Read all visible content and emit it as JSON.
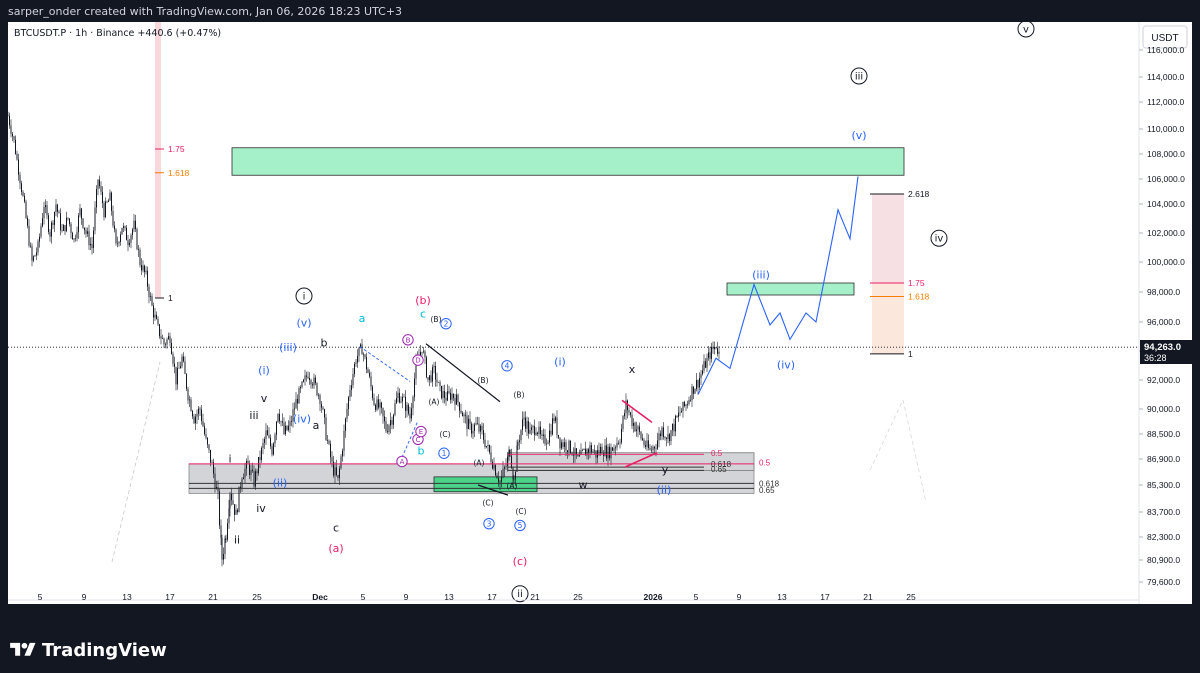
{
  "header": {
    "created_by": "sarper_onder created with TradingView.com, Jan 06, 2026 18:23 UTC+3",
    "symbol_line": "BTCUSDT.P · 1h · Binance  +440.6 (+0.47%)"
  },
  "brand": {
    "name": "TradingView"
  },
  "price_scale": {
    "currency": "USDT",
    "current_price": "94,263.0",
    "countdown": "36:28"
  },
  "colors": {
    "up": "#26a69a",
    "down": "#ef5350",
    "candle": "#131722",
    "blue_wave": "#2962ff",
    "target_zone": "#a5f0c8",
    "pink": "#e91e63",
    "orange": "#f57c00",
    "purple": "#9c27b0",
    "cyan": "#00bcd4"
  },
  "chart_data": {
    "type": "candlestick",
    "interval": "1h",
    "y_ticks": [
      79600,
      80900,
      82300,
      83700,
      85300,
      86900,
      88500,
      90000,
      92000,
      94000,
      96000,
      98000,
      100000,
      102000,
      104000,
      106000,
      108000,
      110000,
      112000,
      114000,
      116000
    ],
    "y_tick_labels": [
      "79,600.0",
      "80,900.0",
      "82,300.0",
      "83,700.0",
      "85,300.0",
      "86,900.0",
      "88,500.0",
      "90,000.0",
      "92,000.0",
      "94,000.0",
      "96,000.0",
      "98,000.0",
      "100,000.0",
      "102,000.0",
      "104,000.0",
      "106,000.0",
      "108,000.0",
      "110,000.0",
      "112,000.0",
      "114,000.0",
      "116,000.0"
    ],
    "x_ticks": [
      "5",
      "9",
      "13",
      "17",
      "21",
      "25",
      "Dec",
      "5",
      "9",
      "13",
      "17",
      "21",
      "25",
      "2026",
      "5",
      "9",
      "13",
      "17",
      "21",
      "25"
    ],
    "price_path": [
      [
        0,
        111000
      ],
      [
        6,
        109000
      ],
      [
        12,
        106000
      ],
      [
        18,
        103000
      ],
      [
        24,
        100000
      ],
      [
        30,
        101000
      ],
      [
        36,
        104000
      ],
      [
        42,
        102000
      ],
      [
        48,
        104000
      ],
      [
        54,
        102000
      ],
      [
        60,
        103000
      ],
      [
        66,
        101500
      ],
      [
        72,
        103500
      ],
      [
        78,
        102000
      ],
      [
        84,
        101000
      ],
      [
        90,
        106000
      ],
      [
        96,
        103500
      ],
      [
        102,
        104500
      ],
      [
        108,
        101000
      ],
      [
        114,
        102500
      ],
      [
        120,
        101500
      ],
      [
        126,
        102500
      ],
      [
        132,
        100000
      ],
      [
        138,
        99000
      ],
      [
        144,
        97000
      ],
      [
        150,
        95500
      ],
      [
        156,
        94500
      ],
      [
        162,
        95000
      ],
      [
        168,
        92000
      ],
      [
        174,
        93500
      ],
      [
        180,
        91000
      ],
      [
        186,
        89500
      ],
      [
        192,
        90000
      ],
      [
        198,
        88000
      ],
      [
        204,
        86500
      ],
      [
        210,
        84500
      ],
      [
        214,
        81000
      ],
      [
        218,
        82500
      ],
      [
        222,
        85000
      ],
      [
        228,
        83500
      ],
      [
        234,
        86000
      ],
      [
        240,
        86500
      ],
      [
        246,
        85500
      ],
      [
        252,
        87000
      ],
      [
        258,
        88500
      ],
      [
        264,
        87500
      ],
      [
        270,
        90000
      ],
      [
        276,
        88500
      ],
      [
        282,
        89000
      ],
      [
        288,
        90500
      ],
      [
        294,
        91500
      ],
      [
        300,
        92500
      ],
      [
        306,
        91800
      ],
      [
        312,
        90800
      ],
      [
        318,
        88500
      ],
      [
        324,
        86500
      ],
      [
        330,
        85500
      ],
      [
        336,
        88500
      ],
      [
        342,
        91500
      ],
      [
        348,
        93500
      ],
      [
        354,
        94200
      ],
      [
        360,
        92500
      ],
      [
        366,
        90500
      ],
      [
        372,
        90000
      ],
      [
        378,
        88800
      ],
      [
        384,
        89500
      ],
      [
        390,
        91000
      ],
      [
        396,
        90500
      ],
      [
        402,
        89500
      ],
      [
        408,
        93000
      ],
      [
        414,
        94300
      ],
      [
        420,
        92000
      ],
      [
        426,
        92600
      ],
      [
        432,
        91200
      ],
      [
        438,
        90800
      ],
      [
        444,
        91000
      ],
      [
        450,
        90500
      ],
      [
        456,
        89500
      ],
      [
        462,
        88800
      ],
      [
        468,
        89000
      ],
      [
        474,
        88500
      ],
      [
        480,
        87500
      ],
      [
        486,
        86500
      ],
      [
        492,
        85500
      ],
      [
        498,
        86500
      ],
      [
        502,
        87500
      ],
      [
        506,
        85500
      ],
      [
        510,
        88000
      ],
      [
        516,
        89500
      ],
      [
        522,
        88500
      ],
      [
        528,
        89000
      ],
      [
        534,
        88000
      ],
      [
        540,
        88300
      ],
      [
        546,
        89500
      ],
      [
        552,
        88000
      ],
      [
        558,
        87800
      ],
      [
        564,
        87500
      ],
      [
        570,
        86800
      ],
      [
        576,
        87300
      ],
      [
        582,
        87600
      ],
      [
        588,
        87200
      ],
      [
        594,
        87600
      ],
      [
        600,
        87300
      ],
      [
        606,
        87700
      ],
      [
        612,
        88300
      ],
      [
        618,
        90300
      ],
      [
        624,
        89300
      ],
      [
        630,
        88700
      ],
      [
        636,
        87900
      ],
      [
        642,
        87400
      ],
      [
        648,
        87900
      ],
      [
        654,
        88800
      ],
      [
        660,
        88300
      ],
      [
        666,
        89000
      ],
      [
        672,
        89800
      ],
      [
        678,
        90300
      ],
      [
        684,
        91300
      ],
      [
        690,
        91900
      ],
      [
        696,
        92900
      ],
      [
        702,
        93800
      ],
      [
        708,
        94400
      ],
      [
        712,
        93600
      ]
    ],
    "projection_path": [
      [
        690,
        91000
      ],
      [
        708,
        93500
      ],
      [
        722,
        92800
      ],
      [
        746,
        98500
      ],
      [
        762,
        95800
      ],
      [
        772,
        96600
      ],
      [
        782,
        94800
      ],
      [
        798,
        96600
      ],
      [
        808,
        96000
      ],
      [
        830,
        103600
      ],
      [
        842,
        101600
      ],
      [
        850,
        106200
      ]
    ],
    "zones": [
      {
        "name": "target-zone-v",
        "from": 106300,
        "to": 108500
      },
      {
        "name": "target-zone-iii",
        "from": 97800,
        "to": 98600
      },
      {
        "name": "support-zone",
        "from": 84800,
        "to": 85800
      }
    ],
    "fib_right": [
      {
        "label": "2.618",
        "value": 104800
      },
      {
        "label": "1.75",
        "value": 98600
      },
      {
        "label": "1.618",
        "value": 97700
      },
      {
        "label": "1",
        "value": 93800
      }
    ],
    "fib_left": [
      {
        "label": "1.75",
        "value": 108400
      },
      {
        "label": "1.618",
        "value": 106500
      },
      {
        "label": "1",
        "value": 97600
      }
    ],
    "fib_mid": [
      {
        "label": "0.5",
        "value": 87200
      },
      {
        "label": "0.618",
        "value": 86400
      },
      {
        "label": "0.65",
        "value": 86200
      },
      {
        "label": "0.5",
        "value": 86600
      },
      {
        "label": "0.618",
        "value": 85400
      },
      {
        "label": "0.65",
        "value": 85100
      }
    ],
    "wave_labels": [
      {
        "text": "i",
        "x": 296,
        "y": 97500,
        "style": "circle-black"
      },
      {
        "text": "ii",
        "x": 512,
        "y": 78700,
        "style": "circle-black"
      },
      {
        "text": "iii",
        "x": 851,
        "y": 113800,
        "style": "circle-black"
      },
      {
        "text": "iv",
        "x": 931,
        "y": 101400,
        "style": "circle-black"
      },
      {
        "text": "v",
        "x": 1018,
        "y": 117300,
        "style": "circle-black"
      },
      {
        "text": "(i)",
        "x": 256,
        "y": 92400,
        "style": "blue"
      },
      {
        "text": "(ii)",
        "x": 272,
        "y": 85200,
        "style": "blue"
      },
      {
        "text": "(iii)",
        "x": 280,
        "y": 94000,
        "style": "blue"
      },
      {
        "text": "(iv)",
        "x": 294,
        "y": 89200,
        "style": "blue"
      },
      {
        "text": "(v)",
        "x": 296,
        "y": 95700,
        "style": "blue"
      },
      {
        "text": "(i)",
        "x": 552,
        "y": 93000,
        "style": "blue"
      },
      {
        "text": "(ii)",
        "x": 656,
        "y": 84800,
        "style": "blue"
      },
      {
        "text": "(iii)",
        "x": 753,
        "y": 98900,
        "style": "blue"
      },
      {
        "text": "(iv)",
        "x": 778,
        "y": 92800,
        "style": "blue"
      },
      {
        "text": "(v)",
        "x": 851,
        "y": 109200,
        "style": "blue"
      },
      {
        "text": "(a)",
        "x": 328,
        "y": 81400,
        "style": "pink"
      },
      {
        "text": "(b)",
        "x": 415,
        "y": 97200,
        "style": "pink"
      },
      {
        "text": "(c)",
        "x": 512,
        "y": 80600,
        "style": "pink"
      },
      {
        "text": "a",
        "x": 354,
        "y": 96000,
        "style": "cyan"
      },
      {
        "text": "b",
        "x": 413,
        "y": 87200,
        "style": "cyan"
      },
      {
        "text": "c",
        "x": 415,
        "y": 96300,
        "style": "cyan"
      },
      {
        "text": "a",
        "x": 308,
        "y": 88800,
        "style": "black"
      },
      {
        "text": "b",
        "x": 316,
        "y": 94300,
        "style": "black"
      },
      {
        "text": "c",
        "x": 328,
        "y": 82600,
        "style": "black"
      },
      {
        "text": "i",
        "x": 222,
        "y": 86700,
        "style": "black"
      },
      {
        "text": "ii",
        "x": 229,
        "y": 81900,
        "style": "black"
      },
      {
        "text": "iii",
        "x": 246,
        "y": 89400,
        "style": "black"
      },
      {
        "text": "iv",
        "x": 253,
        "y": 83700,
        "style": "black"
      },
      {
        "text": "v",
        "x": 256,
        "y": 90500,
        "style": "black"
      },
      {
        "text": "x",
        "x": 624,
        "y": 92500,
        "style": "black"
      },
      {
        "text": "y",
        "x": 657,
        "y": 86000,
        "style": "black"
      },
      {
        "text": "w",
        "x": 575,
        "y": 85100,
        "style": "black"
      },
      {
        "text": "(A)",
        "x": 426,
        "y": 90300,
        "style": "small"
      },
      {
        "text": "(B)",
        "x": 428,
        "y": 96000,
        "style": "small"
      },
      {
        "text": "(C)",
        "x": 437,
        "y": 88300,
        "style": "small"
      },
      {
        "text": "(A)",
        "x": 471,
        "y": 86500,
        "style": "small"
      },
      {
        "text": "(B)",
        "x": 475,
        "y": 91800,
        "style": "small"
      },
      {
        "text": "(C)",
        "x": 480,
        "y": 84100,
        "style": "small"
      },
      {
        "text": "(B)",
        "x": 511,
        "y": 90800,
        "style": "small"
      },
      {
        "text": "(A)",
        "x": 504,
        "y": 85100,
        "style": "small"
      },
      {
        "text": "(C)",
        "x": 513,
        "y": 83600,
        "style": "small"
      },
      {
        "text": "1",
        "x": 436,
        "y": 87100,
        "style": "circle-blue"
      },
      {
        "text": "2",
        "x": 438,
        "y": 95700,
        "style": "circle-blue"
      },
      {
        "text": "3",
        "x": 481,
        "y": 82900,
        "style": "circle-blue"
      },
      {
        "text": "4",
        "x": 499,
        "y": 92800,
        "style": "circle-blue"
      },
      {
        "text": "5",
        "x": 512,
        "y": 82800,
        "style": "circle-blue"
      },
      {
        "text": "A",
        "x": 394,
        "y": 86600,
        "style": "circle-purple"
      },
      {
        "text": "B",
        "x": 400,
        "y": 94600,
        "style": "circle-purple"
      },
      {
        "text": "C",
        "x": 410,
        "y": 88000,
        "style": "circle-purple"
      },
      {
        "text": "D",
        "x": 410,
        "y": 93200,
        "style": "circle-purple"
      },
      {
        "text": "E",
        "x": 413,
        "y": 88500,
        "style": "circle-purple"
      }
    ]
  }
}
